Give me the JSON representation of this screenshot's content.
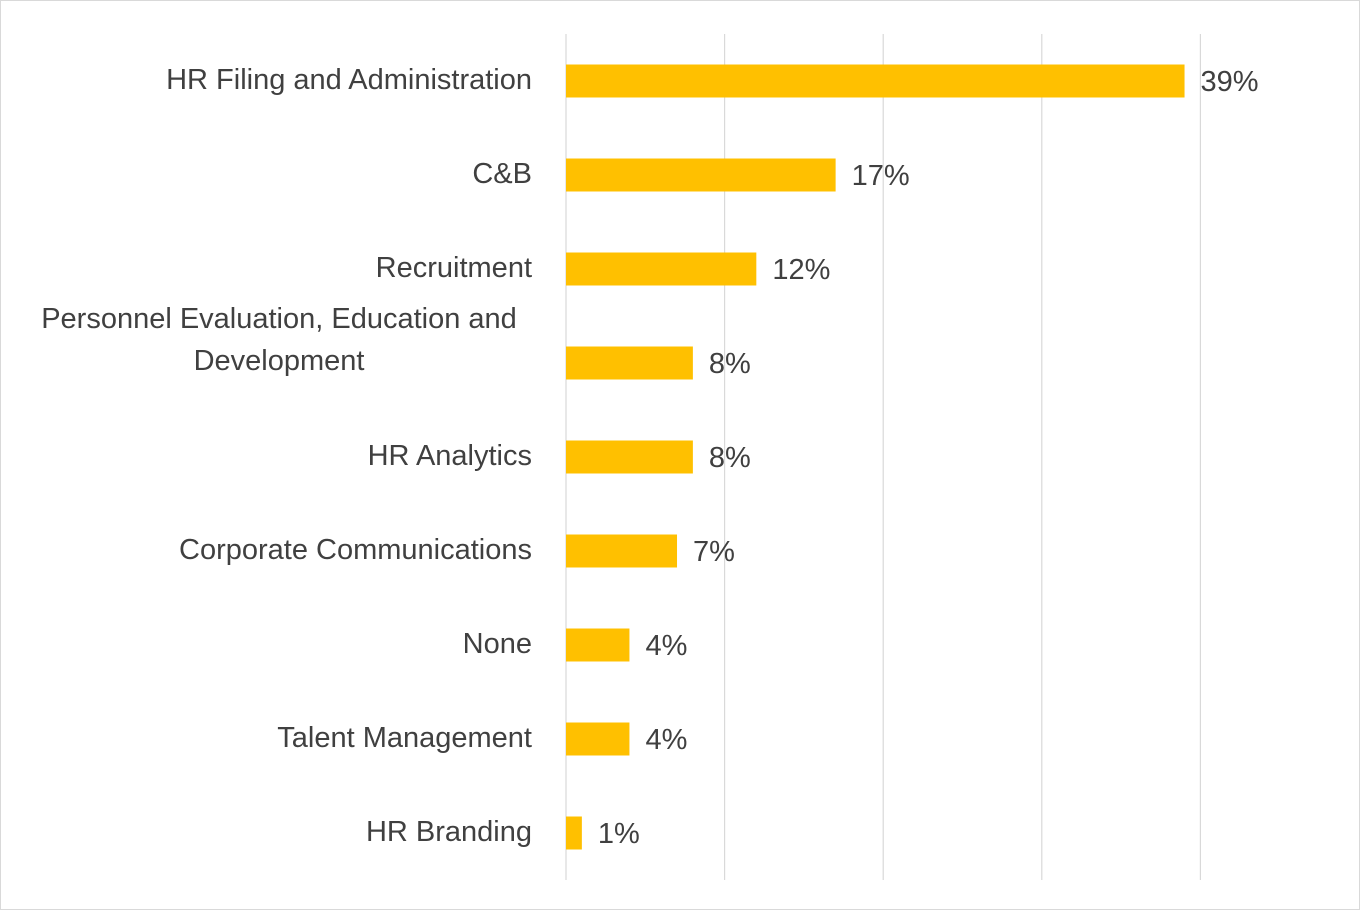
{
  "chart_data": {
    "type": "bar",
    "orientation": "horizontal",
    "categories": [
      "HR Filing and Administration",
      "C&B",
      "Recruitment",
      "Personnel Evaluation, Education and Development",
      "HR Analytics",
      "Corporate Communications",
      "None",
      "Talent Management",
      "HR Branding"
    ],
    "values": [
      39,
      17,
      12,
      8,
      8,
      7,
      4,
      4,
      1
    ],
    "value_labels": [
      "39%",
      "17%",
      "12%",
      "8%",
      "8%",
      "7%",
      "4%",
      "4%",
      "1%"
    ],
    "title": "",
    "xlabel": "",
    "ylabel": "",
    "xlim": [
      0,
      50
    ],
    "grid": true,
    "legend": "none",
    "bar_color": "#FFC000"
  }
}
